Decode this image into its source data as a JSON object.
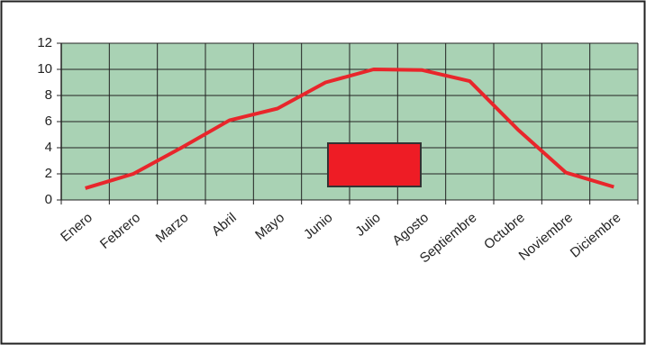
{
  "chart_data": {
    "type": "line",
    "categories": [
      "Enero",
      "Febrero",
      "Marzo",
      "Abril",
      "Mayo",
      "Junio",
      "Julio",
      "Agosto",
      "Septiembre",
      "Octubre",
      "Noviembre",
      "Diciembre"
    ],
    "series": [
      {
        "color": "#e8262b",
        "values": [
          0.9,
          2.0,
          4.0,
          6.1,
          7.0,
          9.0,
          10.0,
          9.95,
          9.1,
          5.4,
          2.1,
          1.0
        ]
      }
    ],
    "ylim": [
      0,
      12
    ],
    "yticks": [
      0,
      2,
      4,
      6,
      8,
      10,
      12
    ],
    "grid": true,
    "background": "#a9d2b4"
  }
}
